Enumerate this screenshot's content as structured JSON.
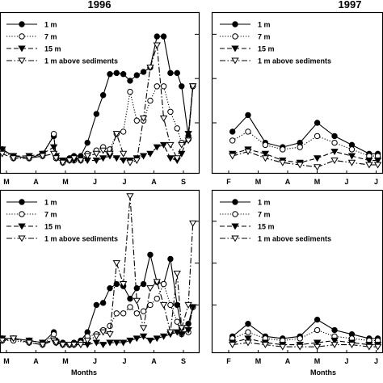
{
  "chart_data": [
    {
      "type": "line",
      "title": "1996",
      "xlabel": "",
      "categories": [
        "M",
        "A",
        "M",
        "J",
        "J",
        "A",
        "S"
      ],
      "legend": {
        "placement": "top-left"
      },
      "series": [
        {
          "name": "1 m",
          "style": "solid",
          "marker": "filled-circle",
          "x": [
            3.05,
            3.3,
            3.65,
            3.95,
            4.2,
            4.25,
            4.4,
            4.55,
            4.65,
            4.8,
            4.95,
            5.15,
            5.3,
            5.45,
            5.6,
            5.75,
            5.9,
            6.05,
            6.2,
            6.35,
            6.5,
            6.65,
            6.8,
            6.95,
            7.05,
            7.2,
            7.3
          ],
          "y": [
            16,
            10,
            8,
            12,
            28,
            10,
            6,
            8,
            10,
            10,
            22,
            48,
            65,
            84,
            85,
            84,
            78,
            83,
            86,
            90,
            118,
            118,
            85,
            85,
            73,
            28,
            73
          ]
        },
        {
          "name": "7 m",
          "style": "dotted",
          "marker": "open-circle",
          "x": [
            3.05,
            3.3,
            3.65,
            3.95,
            4.2,
            4.25,
            4.4,
            4.55,
            4.65,
            4.8,
            4.95,
            5.15,
            5.3,
            5.45,
            5.6,
            5.75,
            5.9,
            6.05,
            6.2,
            6.35,
            6.5,
            6.65,
            6.8,
            6.95,
            7.05,
            7.2,
            7.3
          ],
          "y": [
            16,
            8,
            8,
            10,
            30,
            8,
            4,
            6,
            6,
            6,
            12,
            15,
            18,
            16,
            30,
            32,
            68,
            42,
            42,
            60,
            73,
            73,
            50,
            35,
            22,
            25,
            73
          ]
        },
        {
          "name": "15 m",
          "style": "dashed",
          "marker": "filled-triangle-down",
          "x": [
            3.05,
            3.3,
            3.65,
            3.95,
            4.2,
            4.25,
            4.4,
            4.55,
            4.65,
            4.8,
            4.95,
            5.15,
            5.3,
            5.45,
            5.6,
            5.75,
            5.9,
            6.05,
            6.2,
            6.35,
            6.5,
            6.65,
            6.8,
            6.95,
            7.05,
            7.2,
            7.3
          ],
          "y": [
            16,
            10,
            10,
            12,
            18,
            10,
            6,
            6,
            6,
            6,
            6,
            6,
            8,
            10,
            8,
            6,
            6,
            8,
            10,
            12,
            18,
            20,
            8,
            6,
            12,
            30,
            73
          ]
        },
        {
          "name": "1 m above sediments",
          "style": "dash-dot",
          "marker": "open-triangle-down",
          "x": [
            3.05,
            3.3,
            3.65,
            3.95,
            4.2,
            4.25,
            4.4,
            4.55,
            4.65,
            4.8,
            4.95,
            5.15,
            5.3,
            5.45,
            5.6,
            5.75,
            5.9,
            6.05,
            6.2,
            6.35,
            6.5,
            6.65,
            6.8,
            6.95,
            7.05,
            7.2,
            7.3
          ],
          "y": [
            12,
            8,
            8,
            10,
            12,
            8,
            4,
            6,
            8,
            6,
            10,
            12,
            15,
            12,
            30,
            12,
            4,
            6,
            44,
            90,
            110,
            44,
            20,
            8,
            20,
            24,
            73
          ]
        }
      ]
    },
    {
      "type": "line",
      "title": "1997",
      "xlabel": "",
      "categories": [
        "F",
        "M",
        "A",
        "M",
        "J",
        "J"
      ],
      "legend": {
        "placement": "top-left"
      },
      "series": [
        {
          "name": "1 m",
          "style": "solid",
          "marker": "filled-circle",
          "x": [
            3.05,
            3.5,
            4.0,
            4.5,
            5.0,
            5.5,
            6.0,
            6.5,
            7.0,
            7.25
          ],
          "y": [
            32,
            47,
            22,
            18,
            22,
            40,
            28,
            20,
            12,
            12
          ]
        },
        {
          "name": "7 m",
          "style": "dotted",
          "marker": "open-circle",
          "x": [
            3.05,
            3.5,
            4.0,
            4.5,
            5.0,
            5.5,
            6.0,
            6.5,
            7.0,
            7.25
          ],
          "y": [
            24,
            32,
            20,
            16,
            18,
            28,
            22,
            16,
            10,
            10
          ]
        },
        {
          "name": "15 m",
          "style": "dashed",
          "marker": "filled-triangle-down",
          "x": [
            3.05,
            3.5,
            4.0,
            4.5,
            5.0,
            5.5,
            6.0,
            6.5,
            7.0,
            7.25
          ],
          "y": [
            12,
            16,
            12,
            6,
            4,
            8,
            14,
            10,
            6,
            6
          ]
        },
        {
          "name": "1 m above sediments",
          "style": "dash-dot",
          "marker": "open-triangle-down",
          "x": [
            3.05,
            3.5,
            4.0,
            4.5,
            5.0,
            5.5,
            6.0,
            6.5,
            7.0,
            7.25
          ],
          "y": [
            10,
            14,
            8,
            4,
            2,
            0,
            6,
            4,
            2,
            2
          ]
        }
      ]
    },
    {
      "type": "line",
      "title": "",
      "xlabel": "Months",
      "categories": [
        "M",
        "A",
        "M",
        "J",
        "J",
        "A",
        "S"
      ],
      "legend": {
        "placement": "top-left"
      },
      "series": [
        {
          "name": "1 m",
          "style": "solid",
          "marker": "filled-circle",
          "x": [
            3.05,
            3.3,
            3.65,
            3.95,
            4.2,
            4.25,
            4.4,
            4.55,
            4.65,
            4.8,
            4.95,
            5.15,
            5.3,
            5.45,
            5.6,
            5.75,
            5.9,
            6.05,
            6.2,
            6.35,
            6.5,
            6.65,
            6.8,
            6.95,
            7.05,
            7.2,
            7.3
          ],
          "y": [
            8,
            8,
            6,
            4,
            14,
            6,
            4,
            2,
            4,
            6,
            14,
            40,
            42,
            56,
            60,
            58,
            46,
            56,
            60,
            88,
            62,
            60,
            84,
            40,
            18,
            22,
            38
          ]
        },
        {
          "name": "7 m",
          "style": "dotted",
          "marker": "open-circle",
          "x": [
            3.05,
            3.3,
            3.65,
            3.95,
            4.2,
            4.25,
            4.4,
            4.55,
            4.65,
            4.8,
            4.95,
            5.15,
            5.3,
            5.45,
            5.6,
            5.75,
            5.9,
            6.05,
            6.2,
            6.35,
            6.5,
            6.65,
            6.8,
            6.95,
            7.05,
            7.2,
            7.3
          ],
          "y": [
            6,
            6,
            4,
            2,
            12,
            4,
            2,
            2,
            2,
            4,
            10,
            12,
            16,
            20,
            32,
            32,
            38,
            32,
            34,
            40,
            46,
            60,
            40,
            24,
            12,
            14,
            38
          ]
        },
        {
          "name": "15 m",
          "style": "dashed",
          "marker": "filled-triangle-down",
          "x": [
            3.05,
            3.3,
            3.65,
            3.95,
            4.2,
            4.25,
            4.4,
            4.55,
            4.65,
            4.8,
            4.95,
            5.15,
            5.3,
            5.45,
            5.6,
            5.75,
            5.9,
            6.05,
            6.2,
            6.35,
            6.5,
            6.65,
            6.8,
            6.95,
            7.05,
            7.2,
            7.3
          ],
          "y": [
            8,
            8,
            6,
            4,
            6,
            4,
            2,
            2,
            2,
            2,
            2,
            4,
            2,
            4,
            4,
            4,
            6,
            8,
            10,
            6,
            8,
            10,
            12,
            14,
            12,
            16,
            38
          ]
        },
        {
          "name": "1 m above sediments",
          "style": "dash-dot",
          "marker": "open-triangle-down",
          "x": [
            3.05,
            3.3,
            3.65,
            3.95,
            4.2,
            4.25,
            4.4,
            4.55,
            4.65,
            4.8,
            4.95,
            5.15,
            5.3,
            5.45,
            5.6,
            5.75,
            5.9,
            6.05,
            6.2,
            6.35,
            6.5,
            6.65,
            6.8,
            6.95,
            7.05,
            7.2,
            7.3
          ],
          "y": [
            6,
            8,
            4,
            2,
            6,
            4,
            2,
            2,
            2,
            2,
            6,
            10,
            14,
            12,
            80,
            60,
            144,
            44,
            18,
            56,
            62,
            40,
            14,
            70,
            18,
            40,
            118
          ]
        }
      ]
    },
    {
      "type": "line",
      "title": "",
      "xlabel": "Months",
      "categories": [
        "F",
        "M",
        "A",
        "M",
        "J",
        "J"
      ],
      "legend": {
        "placement": "top-left"
      },
      "series": [
        {
          "name": "1 m",
          "style": "solid",
          "marker": "filled-circle",
          "x": [
            3.05,
            3.5,
            4.0,
            4.5,
            5.0,
            5.5,
            6.0,
            6.5,
            7.0,
            7.25
          ],
          "y": [
            10,
            22,
            10,
            8,
            10,
            26,
            16,
            12,
            8,
            8
          ]
        },
        {
          "name": "7 m",
          "style": "dotted",
          "marker": "open-circle",
          "x": [
            3.05,
            3.5,
            4.0,
            4.5,
            5.0,
            5.5,
            6.0,
            6.5,
            7.0,
            7.25
          ],
          "y": [
            8,
            14,
            8,
            6,
            8,
            16,
            10,
            8,
            6,
            6
          ]
        },
        {
          "name": "15 m",
          "style": "dashed",
          "marker": "filled-triangle-down",
          "x": [
            3.05,
            3.5,
            4.0,
            4.5,
            5.0,
            5.5,
            6.0,
            6.5,
            7.0,
            7.25
          ],
          "y": [
            4,
            8,
            4,
            2,
            2,
            4,
            6,
            4,
            2,
            2
          ]
        },
        {
          "name": "1 m above sediments",
          "style": "dash-dot",
          "marker": "open-triangle-down",
          "x": [
            3.05,
            3.5,
            4.0,
            4.5,
            5.0,
            5.5,
            6.0,
            6.5,
            7.0,
            7.25
          ],
          "y": [
            2,
            4,
            2,
            0,
            0,
            0,
            2,
            2,
            0,
            0
          ]
        }
      ]
    }
  ]
}
